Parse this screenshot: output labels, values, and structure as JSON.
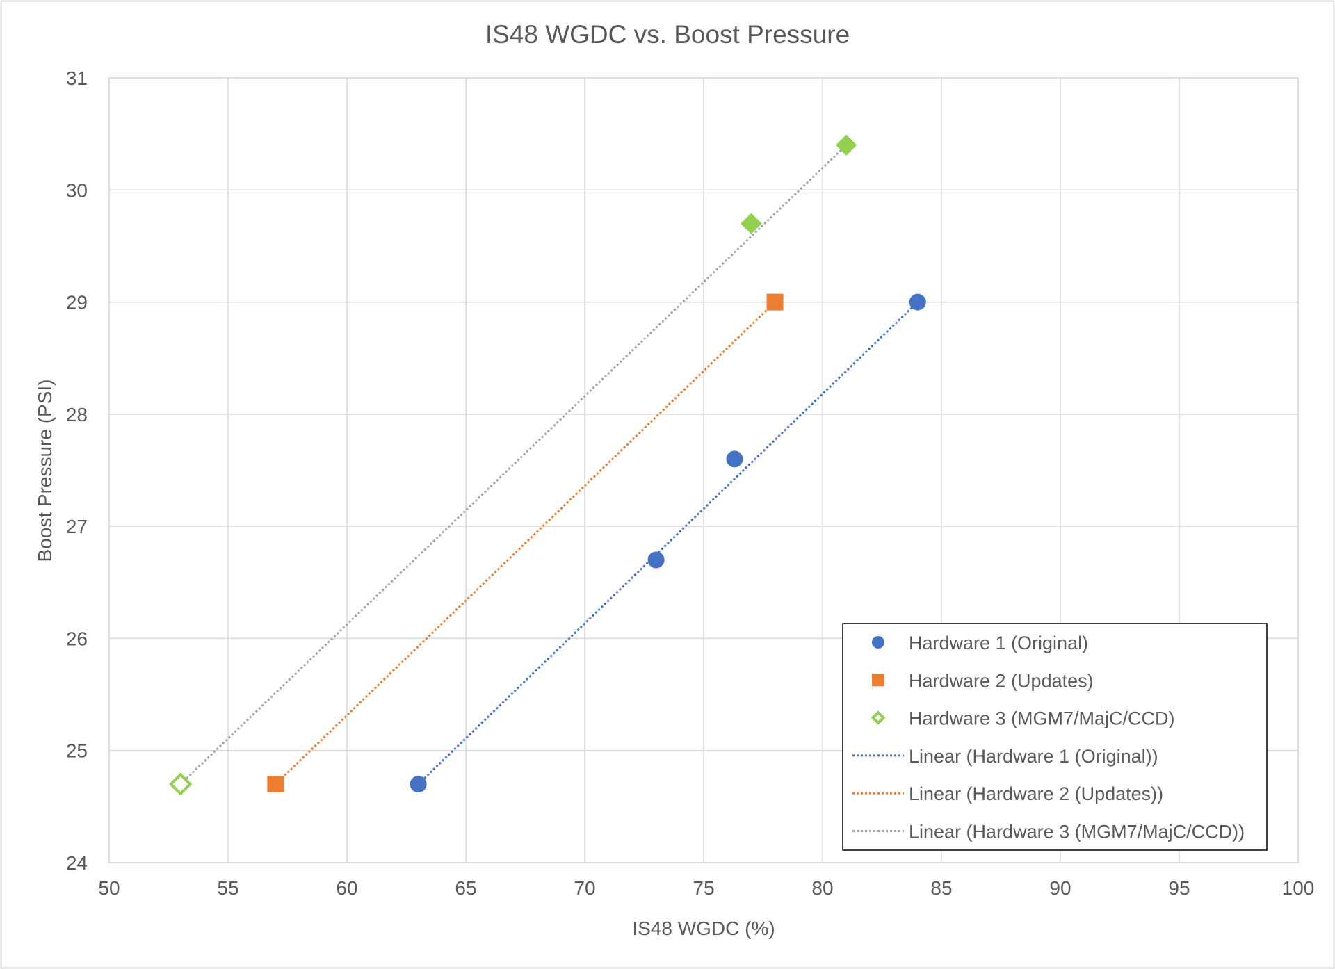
{
  "chart_data": {
    "type": "scatter",
    "title": "IS48 WGDC vs. Boost Pressure",
    "xlabel": "IS48 WGDC (%)",
    "ylabel": "Boost Pressure (PSI)",
    "xlim": [
      50,
      100
    ],
    "ylim": [
      24,
      31
    ],
    "x_ticks": [
      50,
      55,
      60,
      65,
      70,
      75,
      80,
      85,
      90,
      95,
      100
    ],
    "y_ticks": [
      24,
      25,
      26,
      27,
      28,
      29,
      30,
      31
    ],
    "x_tick_labels": [
      "50",
      "55",
      "60",
      "65",
      "70",
      "75",
      "80",
      "85",
      "90",
      "95",
      "100"
    ],
    "y_tick_labels": [
      "24",
      "25",
      "26",
      "27",
      "28",
      "29",
      "30",
      "31"
    ],
    "grid": true,
    "legend_position": "bottom-right",
    "series": [
      {
        "name": "Hardware 1 (Original)",
        "color": "#4472C4",
        "marker": "circle",
        "points": [
          {
            "x": 63,
            "y": 24.7,
            "filled": true
          },
          {
            "x": 73,
            "y": 26.7,
            "filled": true
          },
          {
            "x": 76.3,
            "y": 27.6,
            "filled": true
          },
          {
            "x": 84,
            "y": 29.0,
            "filled": true
          }
        ],
        "trendline": {
          "name": "Linear (Hardware 1 (Original))",
          "x_start": 63,
          "y_start": 24.7,
          "x_end": 84,
          "y_end": 29.0
        }
      },
      {
        "name": "Hardware 2 (Updates)",
        "color": "#ED7D31",
        "marker": "square",
        "points": [
          {
            "x": 57,
            "y": 24.7,
            "filled": true
          },
          {
            "x": 78,
            "y": 29.0,
            "filled": true
          }
        ],
        "trendline": {
          "name": "Linear (Hardware 2 (Updates))",
          "x_start": 57,
          "y_start": 24.7,
          "x_end": 78,
          "y_end": 29.0
        }
      },
      {
        "name": "Hardware 3 (MGM7/MajC/CCD)",
        "color": "#92D050",
        "trend_color": "#A5A5A5",
        "marker": "diamond",
        "points": [
          {
            "x": 53,
            "y": 24.7,
            "filled": false
          },
          {
            "x": 77,
            "y": 29.7,
            "filled": true
          },
          {
            "x": 81,
            "y": 30.4,
            "filled": true
          }
        ],
        "trendline": {
          "name": "Linear (Hardware 3 (MGM7/MajC/CCD))",
          "x_start": 53,
          "y_start": 24.7,
          "x_end": 81,
          "y_end": 30.4
        }
      }
    ]
  }
}
